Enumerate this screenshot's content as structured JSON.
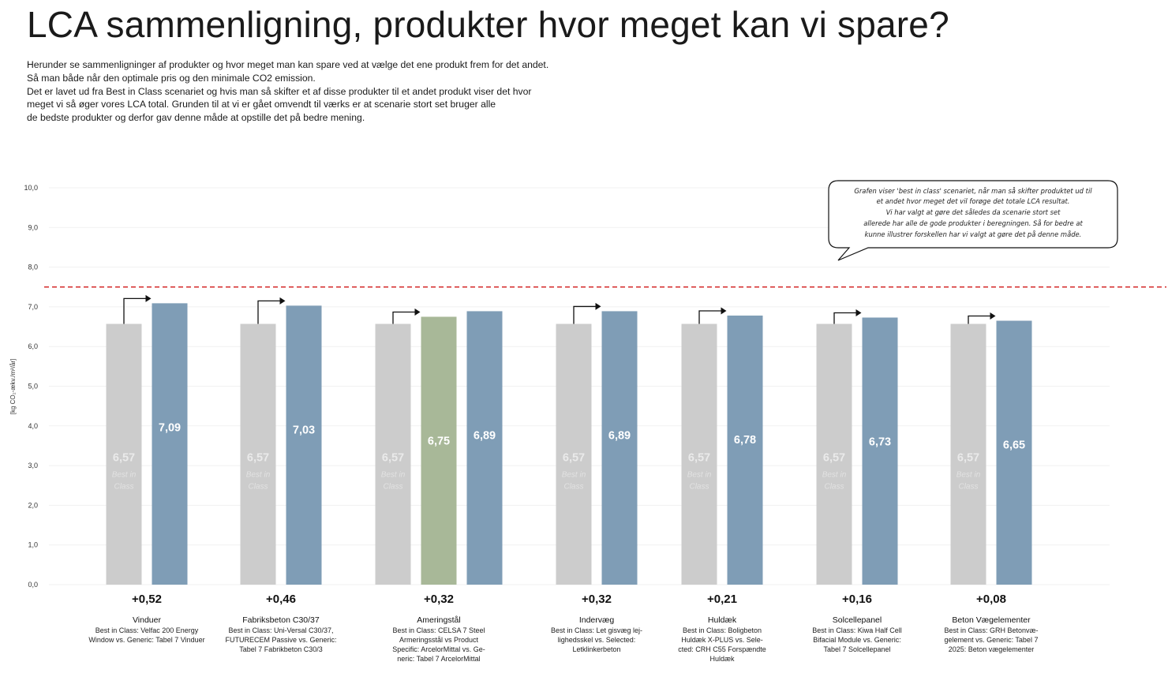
{
  "title": "LCA sammenligning, produkter hvor meget kan vi spare?",
  "intro_lines": [
    "Herunder se sammenligninger af produkter og hvor meget man kan spare ved at vælge det ene produkt frem for det andet.",
    "Så man både når den optimale pris og den minimale CO2 emission.",
    "Det er lavet ud fra Best in Class scenariet og hvis man så skifter et af disse produkter til et andet produkt viser det hvor",
    "meget vi så øger vores LCA total. Grunden til at vi er gået omvendt til værks er at                        scenarie stort set bruger alle",
    "de bedste produkter og derfor gav denne måde at opstille det på bedre mening."
  ],
  "note_lines": [
    "Grafen viser 'best in class' scenariet, når man så skifter produktet ud til",
    "et andet hvor meget det vil forøge det totale LCA resultat.",
    "Vi har valgt at gøre det således da                        scenarie stort set",
    "allerede har alle de gode produkter i beregningen. Så for bedre at",
    "kunne illustrer forskellen har vi valgt at gøre det på denne måde."
  ],
  "colors": {
    "best": "#cccccc",
    "generic": "#7f9db6",
    "selected": "#a8b898",
    "limit_line": "#d42a2a",
    "arrow": "#111111"
  },
  "chart_data": {
    "type": "bar",
    "ylabel": "[kg CO₂-ækv./m²/år]",
    "ylim": [
      0,
      10
    ],
    "yticks": [
      "0,0",
      "1,0",
      "2,0",
      "3,0",
      "4,0",
      "5,0",
      "6,0",
      "7,0",
      "8,0",
      "9,0",
      "10,0"
    ],
    "limit_line_value": 7.5,
    "groups": [
      {
        "name": "Vinduer",
        "delta": "+0,52",
        "description": [
          "Best in Class: Velfac 200 Energy",
          "Window vs. Generic: Tabel 7 Vinduer"
        ],
        "bars": [
          {
            "kind": "best",
            "value": 6.57,
            "label": "6,57",
            "sublabel": [
              "Best in",
              "Class"
            ]
          },
          {
            "kind": "generic",
            "value": 7.09,
            "label": "7,09"
          }
        ]
      },
      {
        "name": "Fabriksbeton C30/37",
        "delta": "+0,46",
        "description": [
          "Best in Class: Uni-Versal C30/37,",
          "FUTURECEM Passive vs. Generic:",
          "Tabel 7 Fabrikbeton C30/3"
        ],
        "bars": [
          {
            "kind": "best",
            "value": 6.57,
            "label": "6,57",
            "sublabel": [
              "Best in",
              "Class"
            ]
          },
          {
            "kind": "generic",
            "value": 7.03,
            "label": "7,03"
          }
        ]
      },
      {
        "name": "Ameringstål",
        "delta": "+0,32",
        "description": [
          "Best in Class: CELSA 7 Steel",
          "Armeringsstål vs Product",
          "Specific: ArcelorMittal vs. Ge-",
          "neric: Tabel 7 ArcelorMittal"
        ],
        "bars": [
          {
            "kind": "best",
            "value": 6.57,
            "label": "6,57",
            "sublabel": [
              "Best in",
              "Class"
            ]
          },
          {
            "kind": "selected",
            "value": 6.75,
            "label": "6,75"
          },
          {
            "kind": "generic",
            "value": 6.89,
            "label": "6,89"
          }
        ]
      },
      {
        "name": "Indervæg",
        "delta": "+0,32",
        "description": [
          "Best in Class: Let gisvæg lej-",
          "lighedsskel vs.          Selected:",
          "Letklinkerbeton"
        ],
        "bars": [
          {
            "kind": "best",
            "value": 6.57,
            "label": "6,57",
            "sublabel": [
              "Best in",
              "Class"
            ]
          },
          {
            "kind": "generic",
            "value": 6.89,
            "label": "6,89"
          }
        ]
      },
      {
        "name": "Huldæk",
        "delta": "+0,21",
        "description": [
          "Best in Class: Boligbeton",
          "Huldæk X-PLUS vs.          Sele-",
          "cted: CRH C55 Forspændte",
          "Huldæk"
        ],
        "bars": [
          {
            "kind": "best",
            "value": 6.57,
            "label": "6,57",
            "sublabel": [
              "Best in",
              "Class"
            ]
          },
          {
            "kind": "generic",
            "value": 6.78,
            "label": "6,78"
          }
        ]
      },
      {
        "name": "Solcellepanel",
        "delta": "+0,16",
        "description": [
          "Best in Class: Kiwa Half Cell",
          "Bifacial Module vs. Generic:",
          "Tabel 7 Solcellepanel"
        ],
        "bars": [
          {
            "kind": "best",
            "value": 6.57,
            "label": "6,57",
            "sublabel": [
              "Best in",
              "Class"
            ]
          },
          {
            "kind": "generic",
            "value": 6.73,
            "label": "6,73"
          }
        ]
      },
      {
        "name": "Beton Vægelementer",
        "delta": "+0,08",
        "description": [
          "Best in Class: GRH Betonvæ-",
          "gelement vs. Generic: Tabel 7",
          "2025: Beton vægelementer"
        ],
        "bars": [
          {
            "kind": "best",
            "value": 6.57,
            "label": "6,57",
            "sublabel": [
              "Best in",
              "Class"
            ]
          },
          {
            "kind": "generic",
            "value": 6.65,
            "label": "6,65"
          }
        ]
      }
    ]
  }
}
